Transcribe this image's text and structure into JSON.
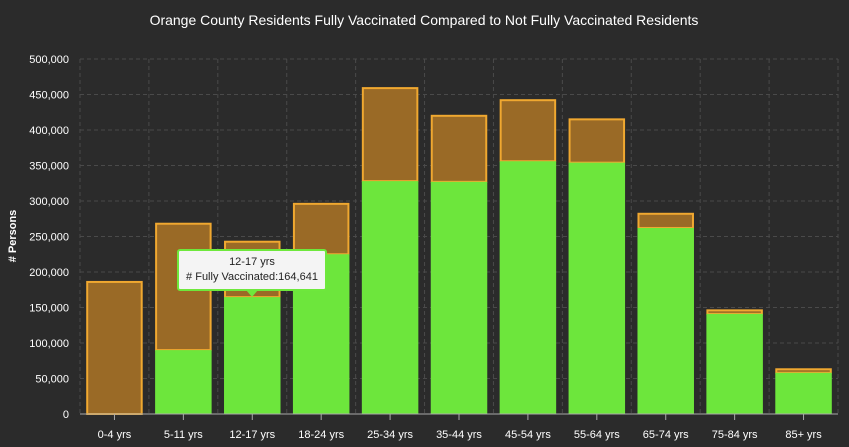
{
  "chart_data": {
    "type": "bar",
    "stacked": true,
    "title": "Orange County Residents Fully Vaccinated Compared to Not Fully Vaccinated Residents",
    "xlabel": "",
    "ylabel": "# Persons",
    "ylim": [
      0,
      500000
    ],
    "yticks": [
      "0",
      "50,000",
      "100,000",
      "150,000",
      "200,000",
      "250,000",
      "300,000",
      "350,000",
      "400,000",
      "450,000",
      "500,000"
    ],
    "grid": true,
    "categories": [
      "0-4 yrs",
      "5-11 yrs",
      "12-17 yrs",
      "18-24 yrs",
      "25-34 yrs",
      "35-44 yrs",
      "45-54 yrs",
      "55-64 yrs",
      "65-74 yrs",
      "75-84 yrs",
      "85+ yrs"
    ],
    "series": [
      {
        "name": "Fully Vaccinated",
        "color": "#6de63c",
        "values": [
          0,
          90000,
          164641,
          225000,
          328000,
          327000,
          356000,
          354000,
          262000,
          141000,
          58000
        ]
      },
      {
        "color": "#9a6a26",
        "stroke": "#f0a830",
        "values": [
          186000,
          178000,
          78000,
          71000,
          131000,
          93000,
          86000,
          61000,
          20000,
          5000,
          5000
        ]
      }
    ],
    "tooltip": {
      "category": "12-17 yrs",
      "label": "# Fully Vaccinated:",
      "value": "164,641"
    }
  }
}
